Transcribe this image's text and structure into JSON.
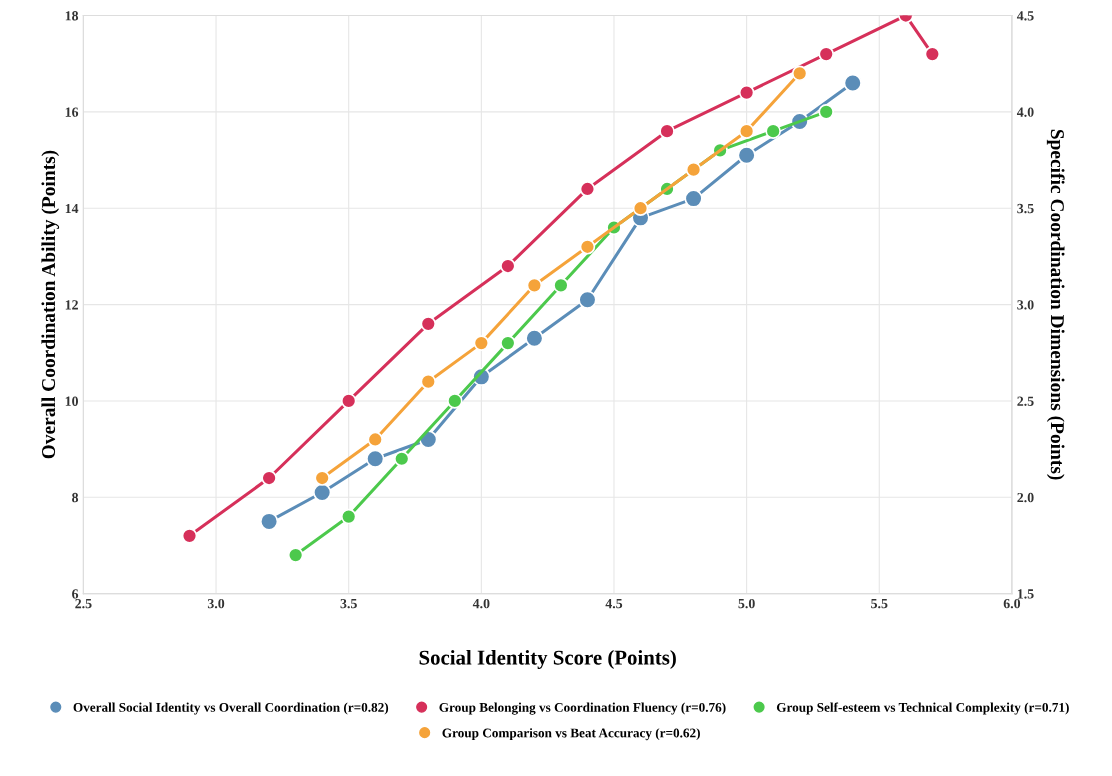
{
  "chart_data": {
    "type": "line",
    "xlabel": "Social Identity Score (Points)",
    "ylabel": "Overall Coordination Ability (Points)",
    "y2label": "Specific Coordination Dimensions (Points)",
    "xlim": [
      2.5,
      6.0
    ],
    "xticks": [
      2.5,
      {
        "value": 3,
        "label": "3.0"
      },
      3.5,
      {
        "value": 4,
        "label": "4.0"
      },
      4.5,
      {
        "value": 5,
        "label": "5.0"
      },
      5.5,
      {
        "value": 6,
        "label": "6.0"
      }
    ],
    "ylim": [
      6,
      18
    ],
    "yticks": [
      6,
      8,
      10,
      12,
      14,
      16,
      18
    ],
    "y2lim": [
      1.5,
      4.5
    ],
    "y2ticks": [
      1.5,
      {
        "value": 2,
        "label": "2.0"
      },
      2.5,
      {
        "value": 3,
        "label": "3.0"
      },
      3.5,
      {
        "value": 4,
        "label": "4.0"
      },
      4.5
    ],
    "grid": true,
    "legend": "bottom",
    "marker": "circle",
    "line_style": "solid",
    "series": [
      {
        "name": "Overall Social Identity vs Overall Coordination (r=0.82)",
        "color": "#5b8db8",
        "x": [
          3.2,
          3.4,
          3.6,
          3.8,
          4.0,
          4.2,
          4.4,
          4.6,
          4.8,
          5.0,
          5.2,
          5.4
        ],
        "values": [
          7.5,
          8.1,
          8.8,
          9.2,
          10.5,
          11.3,
          12.1,
          13.8,
          14.2,
          15.1,
          15.8,
          16.6
        ]
      },
      {
        "name": "Group Belonging vs Coordination Fluency (r=0.76)",
        "color": "#d6305a",
        "axis": "y2",
        "x": [
          2.9,
          3.2,
          3.5,
          3.8,
          4.1,
          4.4,
          4.7,
          5.0,
          5.3,
          5.6,
          5.7
        ],
        "values": [
          1.8,
          2.1,
          2.5,
          2.9,
          3.2,
          3.6,
          3.9,
          4.1,
          4.3,
          4.5,
          4.3
        ]
      },
      {
        "name": "Group Self-esteem vs Technical Complexity (r=0.71)",
        "color": "#4cc94c",
        "axis": "y2",
        "x": [
          3.3,
          3.5,
          3.7,
          3.9,
          4.1,
          4.3,
          4.5,
          4.7,
          4.9,
          5.1,
          5.3
        ],
        "values": [
          1.7,
          1.9,
          2.2,
          2.5,
          2.8,
          3.1,
          3.4,
          3.6,
          3.8,
          3.9,
          4.0
        ]
      },
      {
        "name": "Group Comparison vs Beat Accuracy (r=0.62)",
        "color": "#f5a33a",
        "axis": "y2",
        "x": [
          3.4,
          3.6,
          3.8,
          4.0,
          4.2,
          4.4,
          4.6,
          4.8,
          5.0,
          5.2
        ],
        "values": [
          2.1,
          2.3,
          2.6,
          2.8,
          3.1,
          3.3,
          3.5,
          3.7,
          3.9,
          4.2
        ]
      }
    ]
  }
}
